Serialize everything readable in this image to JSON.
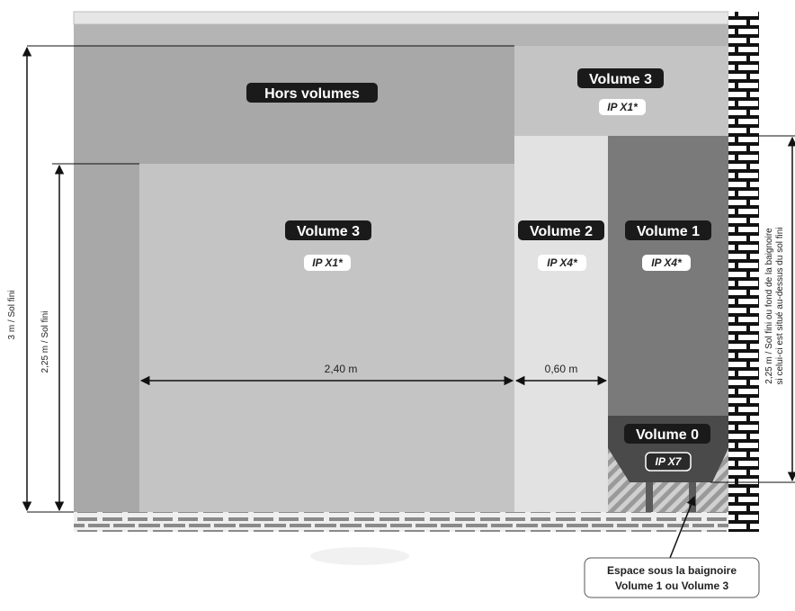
{
  "zones": {
    "hors_volumes": {
      "label": "Hors volumes"
    },
    "volume3_top": {
      "label": "Volume 3",
      "ip": "IP X1*"
    },
    "volume3_main": {
      "label": "Volume 3",
      "ip": "IP X1*"
    },
    "volume2": {
      "label": "Volume 2",
      "ip": "IP X4*"
    },
    "volume1": {
      "label": "Volume 1",
      "ip": "IP X4*"
    },
    "volume0": {
      "label": "Volume 0",
      "ip": "IP X7"
    }
  },
  "dimensions": {
    "width_volume3": "2,40 m",
    "width_volume2": "0,60 m",
    "height_total": "3 m / Sol fini",
    "height_volume": "2,25 m / Sol fini",
    "height_bath_line1": "2,25 m / Sol fini ou fond de la baignoire",
    "height_bath_line2": "si celui-ci est situé au-dessus du sol fini"
  },
  "note": {
    "line1": "Espace sous la baignoire",
    "line2": "Volume 1 ou Volume 3"
  },
  "colors": {
    "hors_volumes": "#a8a8a8",
    "volume3": "#c4c4c4",
    "volume2": "#e2e2e2",
    "volume1": "#7a7a7a",
    "volume0": "#4a4a4a",
    "label_bg": "#1a1a1a"
  }
}
